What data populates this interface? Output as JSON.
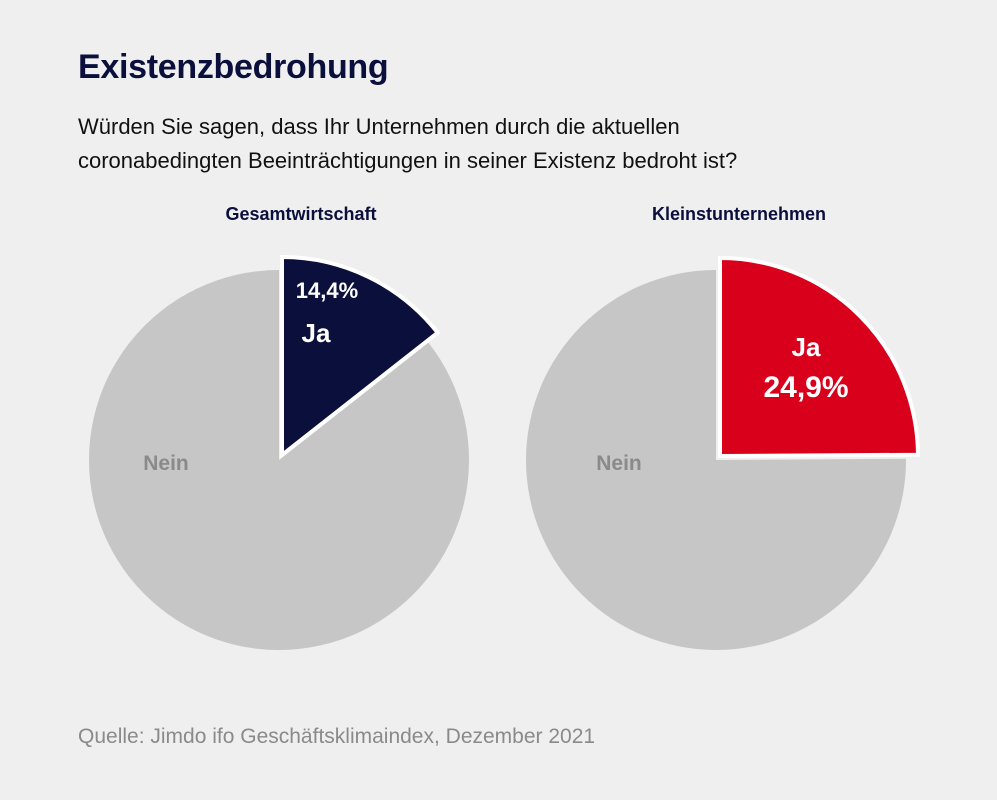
{
  "title": "Existenzbedrohung",
  "subtitle": "Würden Sie sagen, dass Ihr Unternehmen durch die aktuellen coronabedingten Beeinträchtigungen in seiner Existenz bedroht ist?",
  "source": "Quelle: Jimdo ifo Geschäftsklimaindex, Dezember 2021",
  "colors": {
    "nein": "#c6c6c6",
    "ja_gesamt": "#0b0f3b",
    "ja_klein": "#d8001b",
    "background": "#efefef",
    "nein_label": "#8a8a8a"
  },
  "chart_data": [
    {
      "type": "pie",
      "title": "Gesamtwirtschaft",
      "slices": [
        {
          "label": "Ja",
          "value": 14.4,
          "value_label": "14,4%",
          "color": "#0b0f3b",
          "exploded": true
        },
        {
          "label": "Nein",
          "value": 85.6,
          "color": "#c6c6c6"
        }
      ]
    },
    {
      "type": "pie",
      "title": "Kleinstunternehmen",
      "slices": [
        {
          "label": "Ja",
          "value": 24.9,
          "value_label": "24,9%",
          "color": "#d8001b",
          "exploded": true
        },
        {
          "label": "Nein",
          "value": 75.1,
          "color": "#c6c6c6"
        }
      ]
    }
  ]
}
